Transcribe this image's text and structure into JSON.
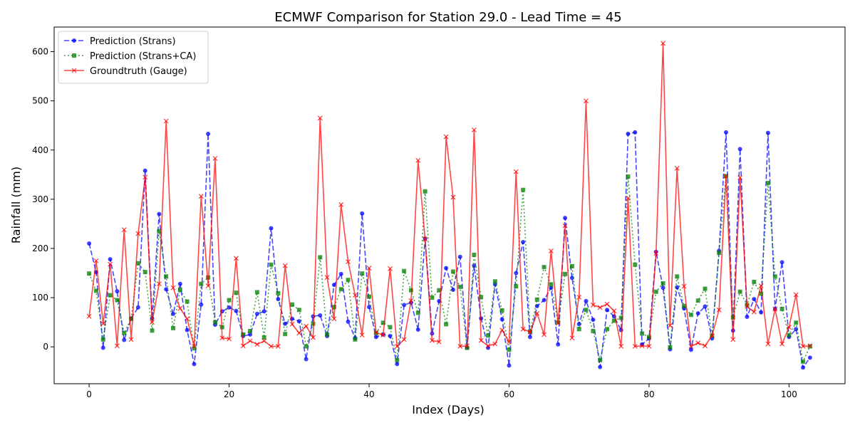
{
  "chart_data": {
    "type": "line",
    "title": "ECMWF Comparison for Station 29.0 - Lead Time = 45",
    "xlabel": "Index (Days)",
    "ylabel": "Rainfall (mm)",
    "xlim": [
      -5,
      108
    ],
    "ylim": [
      -75,
      650
    ],
    "xticks": [
      0,
      20,
      40,
      60,
      80,
      100
    ],
    "yticks": [
      0,
      100,
      200,
      300,
      400,
      500,
      600
    ],
    "grid": false,
    "legend_position": "upper-left",
    "x": [
      0,
      1,
      2,
      3,
      4,
      5,
      6,
      7,
      8,
      9,
      10,
      11,
      12,
      13,
      14,
      15,
      16,
      17,
      18,
      19,
      20,
      21,
      22,
      23,
      24,
      25,
      26,
      27,
      28,
      29,
      30,
      31,
      32,
      33,
      34,
      35,
      36,
      37,
      38,
      39,
      40,
      41,
      42,
      43,
      44,
      45,
      46,
      47,
      48,
      49,
      50,
      51,
      52,
      53,
      54,
      55,
      56,
      57,
      58,
      59,
      60,
      61,
      62,
      63,
      64,
      65,
      66,
      67,
      68,
      69,
      70,
      71,
      72,
      73,
      74,
      75,
      76,
      77,
      78,
      79,
      80,
      81,
      82,
      83,
      84,
      85,
      86,
      87,
      88,
      89,
      90,
      91,
      92,
      93,
      94,
      95,
      96,
      97,
      98,
      99,
      100,
      101,
      102,
      103
    ],
    "series": [
      {
        "name": "Prediction (Strans)",
        "color": "#0000ff",
        "linestyle": "dashed",
        "marker": "circle",
        "values": [
          210,
          152,
          -2,
          178,
          113,
          14,
          58,
          80,
          358,
          58,
          270,
          117,
          67,
          128,
          34,
          -35,
          86,
          433,
          45,
          72,
          80,
          73,
          22,
          25,
          67,
          72,
          241,
          97,
          47,
          57,
          52,
          -25,
          62,
          64,
          22,
          126,
          148,
          51,
          18,
          271,
          81,
          20,
          25,
          22,
          -35,
          85,
          90,
          35,
          220,
          27,
          93,
          160,
          116,
          183,
          -2,
          165,
          58,
          -2,
          127,
          56,
          -38,
          150,
          213,
          20,
          83,
          95,
          120,
          5,
          262,
          140,
          46,
          93,
          55,
          -41,
          75,
          62,
          34,
          433,
          436,
          5,
          17,
          193,
          120,
          -5,
          121,
          78,
          -6,
          68,
          82,
          17,
          195,
          436,
          33,
          402,
          61,
          97,
          70,
          435,
          77,
          172,
          20,
          36,
          -42,
          -22
        ]
      },
      {
        "name": "Prediction (Strans+CA)",
        "color": "#008000",
        "linestyle": "dotted",
        "marker": "square",
        "values": [
          149,
          114,
          15,
          105,
          95,
          28,
          57,
          170,
          152,
          33,
          235,
          143,
          38,
          116,
          92,
          -3,
          128,
          141,
          50,
          40,
          95,
          110,
          25,
          32,
          111,
          19,
          167,
          109,
          26,
          86,
          75,
          1,
          47,
          182,
          25,
          81,
          117,
          136,
          15,
          149,
          102,
          28,
          49,
          40,
          -27,
          154,
          115,
          69,
          316,
          100,
          115,
          46,
          153,
          122,
          -2,
          187,
          101,
          23,
          133,
          74,
          -6,
          123,
          319,
          31,
          96,
          162,
          127,
          50,
          148,
          164,
          36,
          75,
          32,
          -27,
          36,
          53,
          59,
          346,
          167,
          27,
          20,
          112,
          129,
          -1,
          143,
          83,
          65,
          94,
          118,
          22,
          191,
          347,
          60,
          112,
          85,
          132,
          108,
          333,
          143,
          77,
          24,
          49,
          -30,
          1
        ]
      },
      {
        "name": "Groundtruth (Gauge)",
        "color": "#ff0000",
        "linestyle": "solid",
        "marker": "x",
        "values": [
          62,
          175,
          47,
          168,
          2,
          238,
          15,
          230,
          345,
          50,
          128,
          459,
          120,
          78,
          57,
          1,
          306,
          124,
          383,
          18,
          16,
          180,
          2,
          12,
          5,
          12,
          1,
          1,
          165,
          46,
          28,
          42,
          19,
          465,
          141,
          57,
          289,
          173,
          105,
          24,
          160,
          29,
          24,
          159,
          1,
          15,
          94,
          379,
          219,
          13,
          10,
          427,
          304,
          1,
          2,
          441,
          13,
          2,
          6,
          34,
          10,
          356,
          36,
          30,
          68,
          25,
          195,
          48,
          246,
          18,
          101,
          500,
          85,
          80,
          87,
          73,
          1,
          302,
          1,
          2,
          1,
          190,
          617,
          43,
          363,
          123,
          1,
          8,
          2,
          23,
          75,
          347,
          15,
          344,
          82,
          71,
          124,
          6,
          77,
          6,
          40,
          106,
          1,
          2
        ]
      }
    ]
  }
}
